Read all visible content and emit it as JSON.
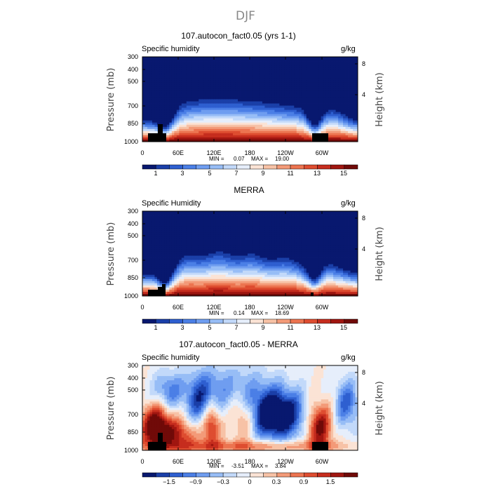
{
  "figure": {
    "season_title": "DJF"
  },
  "chart_data": [
    {
      "type": "heatmap",
      "title": "107.autocon_fact0.05 (yrs 1-1)",
      "left_label": "Specific humidity",
      "units": "g/kg",
      "ylabel": "Pressure (mb)",
      "ylabel_right": "Height (km)",
      "pressure_ticks": [
        "300",
        "400",
        "500",
        "700",
        "850",
        "1000"
      ],
      "height_ticks": [
        "8",
        "4"
      ],
      "lon_ticks": [
        "0",
        "60E",
        "120E",
        "180",
        "120W",
        "60W"
      ],
      "min_label": "MIN =",
      "min_value": "0.07",
      "max_label": "MAX =",
      "max_value": "19.00",
      "colorbar_labels": [
        "1",
        "3",
        "5",
        "7",
        "9",
        "11",
        "13",
        "15"
      ],
      "colormap": [
        "#08186f",
        "#1a3fa8",
        "#2e5fd0",
        "#4b7fe6",
        "#6f9df0",
        "#97bdf6",
        "#c2d9fa",
        "#e6eefb",
        "#fbe3d5",
        "#f7c2a6",
        "#f39a78",
        "#ec7450",
        "#de4d30",
        "#c62d1e",
        "#a01610",
        "#700a08"
      ]
    },
    {
      "type": "heatmap",
      "title": "MERRA",
      "left_label": "Specific Humidity",
      "units": "g/kg",
      "ylabel": "Pressure (mb)",
      "ylabel_right": "Height (km)",
      "pressure_ticks": [
        "300",
        "400",
        "500",
        "700",
        "850",
        "1000"
      ],
      "height_ticks": [
        "8",
        "4"
      ],
      "lon_ticks": [
        "0",
        "60E",
        "120E",
        "180",
        "120W",
        "60W"
      ],
      "min_label": "MIN =",
      "min_value": "0.14",
      "max_label": "MAX =",
      "max_value": "18.69",
      "colorbar_labels": [
        "1",
        "3",
        "5",
        "7",
        "9",
        "11",
        "13",
        "15"
      ],
      "colormap": [
        "#08186f",
        "#1a3fa8",
        "#2e5fd0",
        "#4b7fe6",
        "#6f9df0",
        "#97bdf6",
        "#c2d9fa",
        "#e6eefb",
        "#fbe3d5",
        "#f7c2a6",
        "#f39a78",
        "#ec7450",
        "#de4d30",
        "#c62d1e",
        "#a01610",
        "#700a08"
      ]
    },
    {
      "type": "heatmap",
      "title": "107.autocon_fact0.05 - MERRA",
      "left_label": "Specific humidity",
      "units": "g/kg",
      "ylabel": "Pressure (mb)",
      "ylabel_right": "Height (km)",
      "pressure_ticks": [
        "300",
        "400",
        "500",
        "700",
        "850",
        "1000"
      ],
      "height_ticks": [
        "8",
        "4"
      ],
      "lon_ticks": [
        "0",
        "60E",
        "120E",
        "180",
        "120W",
        "60W"
      ],
      "min_label": "MIN =",
      "min_value": "-3.51",
      "max_label": "MAX =",
      "max_value": "3.84",
      "colorbar_labels": [
        "−1.5",
        "−0.9",
        "−0.3",
        "0",
        "0.3",
        "0.9",
        "1.5"
      ],
      "colormap": [
        "#08186f",
        "#1a3fa8",
        "#2e5fd0",
        "#4b7fe6",
        "#6f9df0",
        "#97bdf6",
        "#c2d9fa",
        "#e6eefb",
        "#fbe3d5",
        "#f7c2a6",
        "#f39a78",
        "#ec7450",
        "#de4d30",
        "#c62d1e",
        "#a01610",
        "#700a08"
      ]
    }
  ]
}
